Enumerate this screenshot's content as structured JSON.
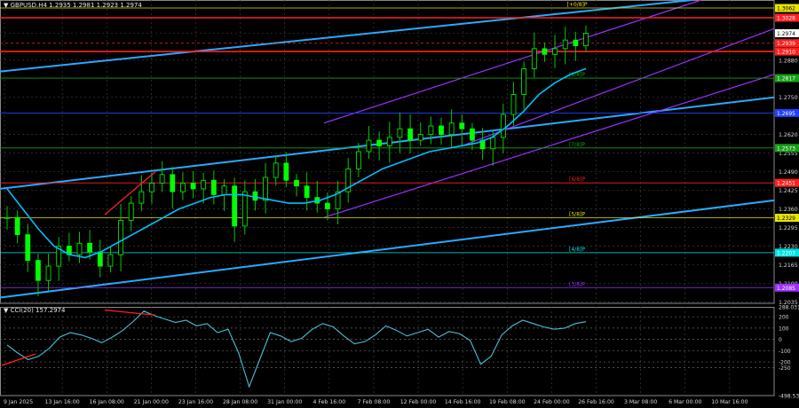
{
  "instrument": {
    "title": "▼ GBPUSD.H4  1.2935 1.2981 1.2923 1.2974"
  },
  "indicator": {
    "title": "▼ CCI(20) 157.2974"
  },
  "colors": {
    "background": "#000000",
    "grid": "#3a3a3a",
    "candle_body": "#00ff00",
    "candle_wick": "#00c800",
    "ma": "#00bfff",
    "trend": "#2aa9ff",
    "channel": "#9b30ff",
    "resistance": "#ff2020",
    "murray_yellow": "#e6e600",
    "murray_cyan": "#00e5e5",
    "murray_purple": "#9b30ff",
    "murray_red": "#ff2020",
    "murray_green": "#16a016",
    "murray_blue": "#1f3fff",
    "divergence": "#ff2020",
    "cci_line": "#48c0d8"
  },
  "chart_data": [
    {
      "type": "line",
      "name": "GBPUSD H4 price",
      "y_axis_ticks": [
        "1.2974",
        "1.2880",
        "1.2750",
        "1.2620",
        "1.2555",
        "1.2490",
        "1.2425",
        "1.2360",
        "1.2295",
        "1.2230",
        "1.2165",
        "1.2100",
        "1.2035"
      ],
      "ylim": [
        1.203,
        1.309
      ],
      "x_tick_labels": [
        "9 Jan 2025",
        "13 Jan 16:00",
        "16 Jan 08:00",
        "21 Jan 00:00",
        "23 Jan 16:00",
        "28 Jan 08:00",
        "31 Jan 00:00",
        "4 Feb 16:00",
        "7 Feb 08:00",
        "12 Feb 00:00",
        "14 Feb 16:00",
        "19 Feb 08:00",
        "24 Feb 00:00",
        "26 Feb 16:00",
        "3 Mar 08:00",
        "6 Mar 00:00",
        "10 Mar 16:00"
      ],
      "price_close_path": [
        1.233,
        1.227,
        1.218,
        1.211,
        1.216,
        1.223,
        1.22,
        1.224,
        1.221,
        1.216,
        1.22,
        1.232,
        1.238,
        1.242,
        1.245,
        1.248,
        1.242,
        1.245,
        1.243,
        1.246,
        1.241,
        1.244,
        1.23,
        1.242,
        1.239,
        1.247,
        1.252,
        1.246,
        1.244,
        1.24,
        1.238,
        1.236,
        1.242,
        1.25,
        1.256,
        1.26,
        1.258,
        1.261,
        1.264,
        1.26,
        1.262,
        1.265,
        1.262,
        1.266,
        1.264,
        1.26,
        1.257,
        1.261,
        1.269,
        1.276,
        1.285,
        1.292,
        1.29,
        1.292,
        1.295,
        1.293,
        1.2974
      ],
      "ma_path": [
        1.243,
        1.236,
        1.229,
        1.223,
        1.22,
        1.219,
        1.221,
        1.224,
        1.227,
        1.23,
        1.233,
        1.236,
        1.238,
        1.24,
        1.241,
        1.241,
        1.24,
        1.239,
        1.238,
        1.238,
        1.239,
        1.241,
        1.244,
        1.247,
        1.25,
        1.252,
        1.254,
        1.256,
        1.257,
        1.258,
        1.259,
        1.261,
        1.265,
        1.27,
        1.276,
        1.28,
        1.283,
        1.285
      ],
      "price_labels": [
        {
          "text": "1.3062",
          "kind": "murray_yellow"
        },
        {
          "text": "1.3028",
          "kind": "resistance"
        },
        {
          "text": "1.2974",
          "kind": "last"
        },
        {
          "text": "1.2939",
          "kind": "resistance"
        },
        {
          "text": "1.2910",
          "kind": "resistance"
        },
        {
          "text": "1.2817",
          "kind": "murray_green"
        },
        {
          "text": "1.2695",
          "kind": "murray_blue"
        },
        {
          "text": "1.2573",
          "kind": "murray_green"
        },
        {
          "text": "1.2451",
          "kind": "murray_red"
        },
        {
          "text": "1.2329",
          "kind": "murray_yellow"
        },
        {
          "text": "1.2207",
          "kind": "murray_cyan"
        },
        {
          "text": "1.2085",
          "kind": "murray_purple"
        }
      ],
      "murray_labels": [
        {
          "text": "[+0/8]P",
          "value": 1.3062,
          "kind": "murray_yellow"
        },
        {
          "text": "[8/8]P",
          "value": 1.2817,
          "kind": "murray_green"
        },
        {
          "text": "[7/8]P",
          "value": 1.2573,
          "kind": "murray_green"
        },
        {
          "text": "[6/8]P",
          "value": 1.2451,
          "kind": "murray_red"
        },
        {
          "text": "[5/8]P",
          "value": 1.2329,
          "kind": "murray_yellow"
        },
        {
          "text": "[4/8]P",
          "value": 1.2207,
          "kind": "murray_cyan"
        },
        {
          "text": "[3/8]P",
          "value": 1.2085,
          "kind": "murray_purple"
        }
      ]
    },
    {
      "type": "line",
      "name": "CCI(20)",
      "y_axis_ticks": [
        "288.0313",
        "200",
        "100",
        "0",
        "-100",
        "-200",
        "-250",
        "-498.5384"
      ],
      "ylim": [
        -498.5384,
        288.0313
      ],
      "levels": [
        200,
        100,
        0,
        -100,
        -200,
        -250
      ],
      "values": [
        -50,
        -120,
        -180,
        -150,
        -80,
        20,
        60,
        40,
        10,
        -30,
        20,
        80,
        160,
        250,
        210,
        180,
        150,
        170,
        120,
        140,
        60,
        90,
        -120,
        -420,
        -180,
        60,
        30,
        -20,
        10,
        90,
        140,
        110,
        30,
        -40,
        -20,
        40,
        120,
        80,
        30,
        60,
        90,
        20,
        70,
        50,
        -10,
        -220,
        -150,
        40,
        120,
        170,
        140,
        110,
        90,
        100,
        140,
        157
      ]
    }
  ]
}
